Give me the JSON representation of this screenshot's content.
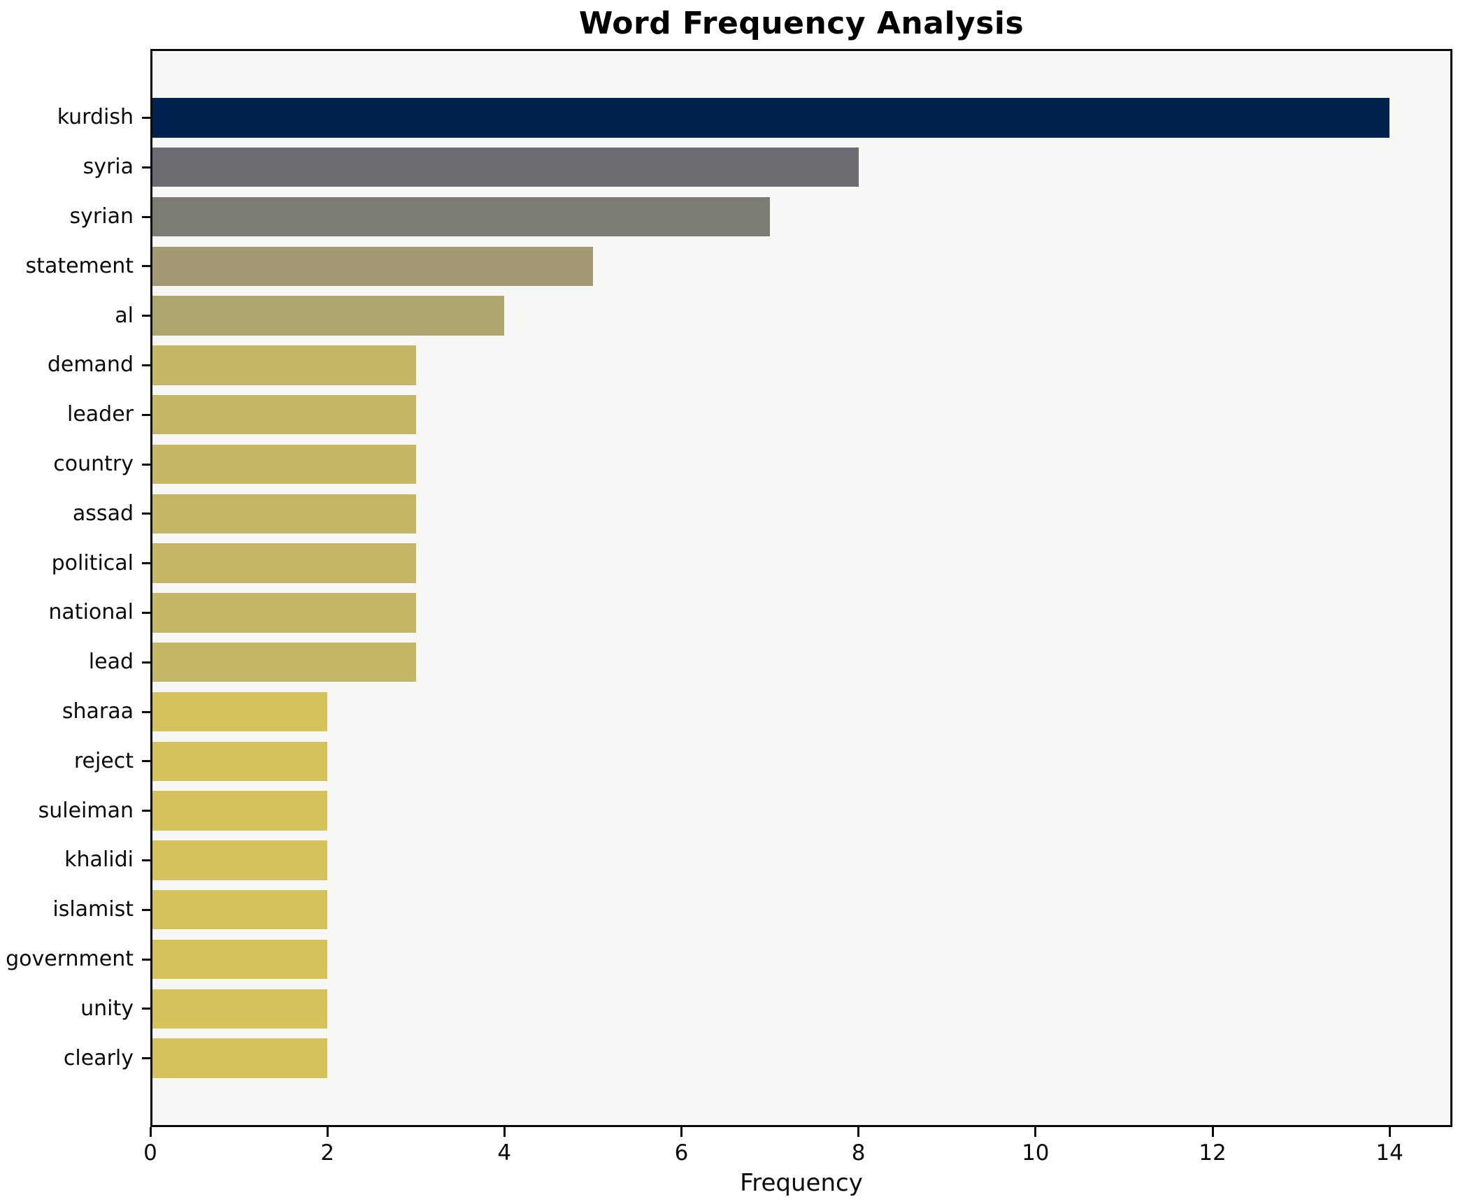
{
  "chart_data": {
    "type": "bar",
    "orientation": "horizontal",
    "title": "Word Frequency Analysis",
    "xlabel": "Frequency",
    "ylabel": "",
    "xlim": [
      0,
      14.71
    ],
    "x_ticks": [
      0,
      2,
      4,
      6,
      8,
      10,
      12,
      14
    ],
    "grid": false,
    "legend": "none",
    "plot_background": "#f7f7f6",
    "figure_background": "#ffffff",
    "spine_color": "#0a0a0a",
    "categories": [
      "kurdish",
      "syria",
      "syrian",
      "statement",
      "al",
      "demand",
      "leader",
      "country",
      "assad",
      "political",
      "national",
      "lead",
      "sharaa",
      "reject",
      "suleiman",
      "khalidi",
      "islamist",
      "government",
      "unity",
      "clearly"
    ],
    "values": [
      14,
      8,
      7,
      5,
      4,
      3,
      3,
      3,
      3,
      3,
      3,
      3,
      2,
      2,
      2,
      2,
      2,
      2,
      2,
      2
    ],
    "bar_colors": [
      "#00224e",
      "#6b6d72",
      "#7c7b74",
      "#a39a74",
      "#aea46d",
      "#c4b666",
      "#c4b666",
      "#c4b666",
      "#c4b666",
      "#c4b666",
      "#c4b666",
      "#c4b666",
      "#d6c25a",
      "#d6c25a",
      "#d6c25a",
      "#d6c25a",
      "#d6c25a",
      "#d6c25a",
      "#d6c25a",
      "#d6c25a"
    ]
  }
}
